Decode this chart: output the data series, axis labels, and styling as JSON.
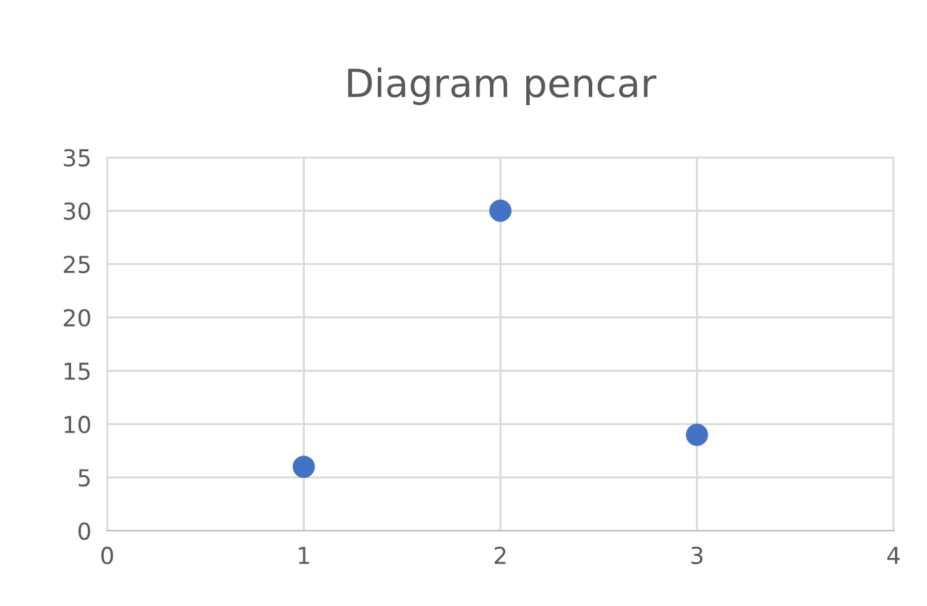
{
  "chart_data": {
    "type": "scatter",
    "title": "Diagram pencar",
    "x": [
      1,
      2,
      3
    ],
    "values": [
      6,
      30,
      9
    ],
    "color": "#4472c4",
    "marker": "circle",
    "xlim": [
      0,
      4
    ],
    "xticks": [
      0,
      1,
      2,
      3,
      4
    ],
    "ylim": [
      0,
      35
    ],
    "yticks": [
      0,
      5,
      10,
      15,
      20,
      25,
      30,
      35
    ],
    "grid": true,
    "legend": false
  }
}
